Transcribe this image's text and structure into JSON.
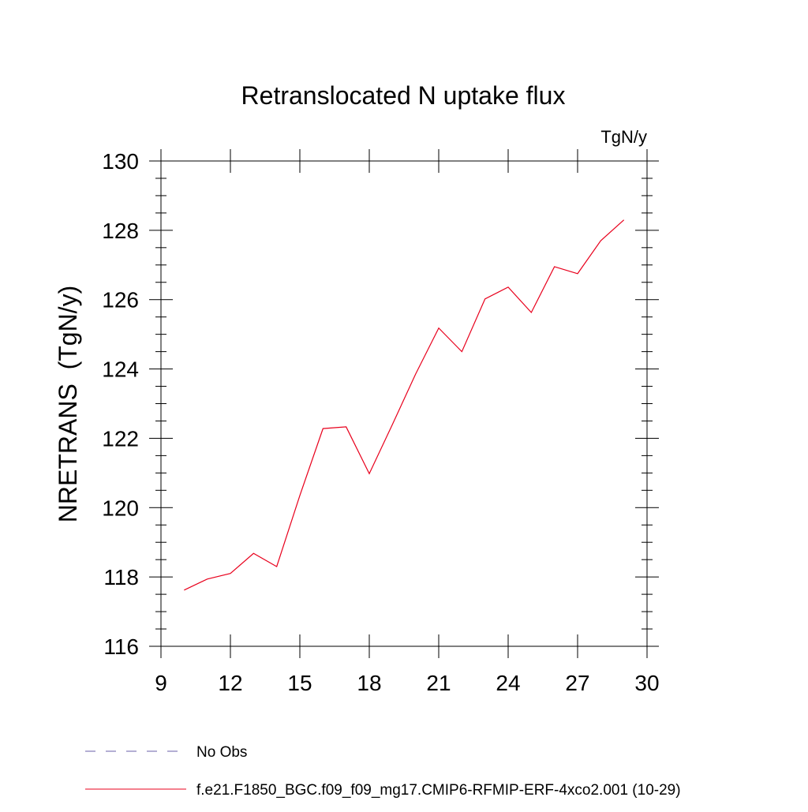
{
  "chart_data": {
    "type": "line",
    "title": "Retranslocated N uptake flux",
    "units_label": "TgN/y",
    "ylabel": "NRETRANS  (TgN/y)",
    "xlabel": "",
    "xlim": [
      9,
      30
    ],
    "ylim": [
      116,
      130
    ],
    "x_ticks": [
      9,
      12,
      15,
      18,
      21,
      24,
      27,
      30
    ],
    "x_tick_labels": [
      "9",
      "12",
      "15",
      "18",
      "21",
      "24",
      "27",
      "30"
    ],
    "y_ticks": [
      116,
      118,
      120,
      122,
      124,
      126,
      128,
      130
    ],
    "y_tick_labels": [
      "116",
      "118",
      "120",
      "122",
      "124",
      "126",
      "128",
      "130"
    ],
    "series": [
      {
        "name": "f.e21.F1850_BGC.f09_f09_mg17.CMIP6-RFMIP-ERF-4xco2.001 (10-29)",
        "color": "#e8001c",
        "x": [
          10,
          11,
          12,
          13,
          14,
          15,
          16,
          17,
          18,
          19,
          20,
          21,
          22,
          23,
          24,
          25,
          26,
          27,
          28,
          29
        ],
        "values": [
          117.62,
          117.94,
          118.1,
          118.68,
          118.3,
          120.35,
          122.28,
          122.33,
          120.98,
          122.4,
          123.85,
          125.18,
          124.5,
          126.02,
          126.36,
          125.63,
          126.95,
          126.75,
          127.7,
          128.3
        ]
      }
    ],
    "legend": {
      "placement": "bottom-left",
      "entries": [
        {
          "label": "No Obs",
          "style": "dashed",
          "color": "#6a5fa8"
        },
        {
          "label": "f.e21.F1850_BGC.f09_f09_mg17.CMIP6-RFMIP-ERF-4xco2.001 (10-29)",
          "style": "solid",
          "color": "#e8001c"
        }
      ]
    }
  }
}
